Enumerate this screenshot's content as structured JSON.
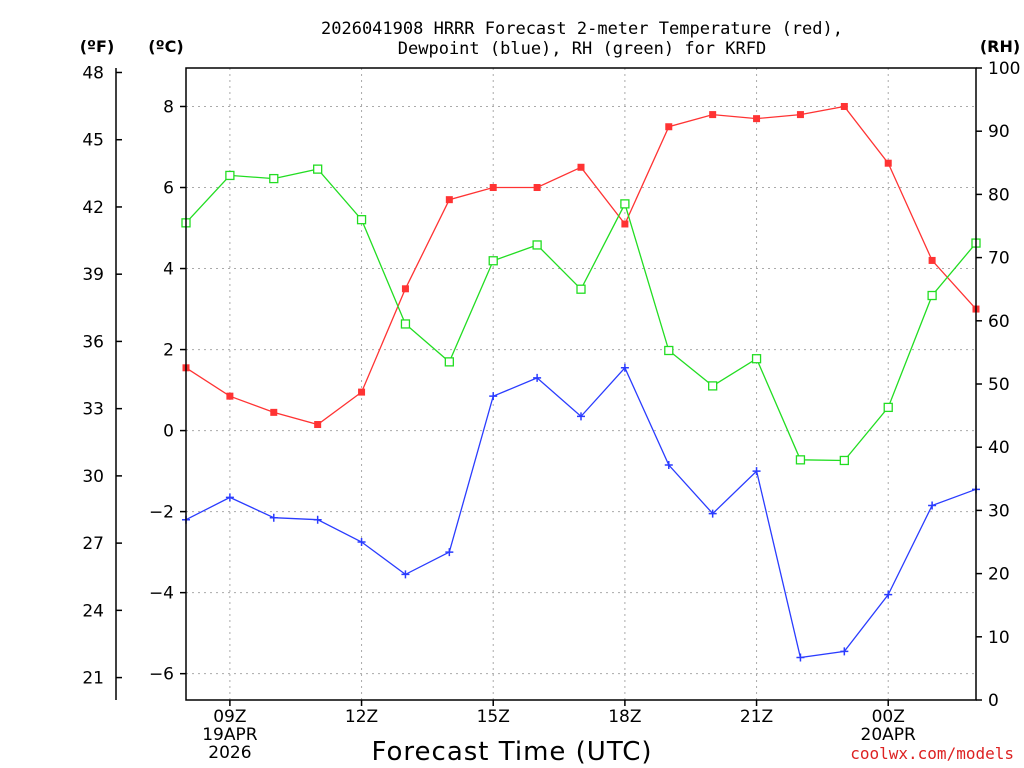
{
  "chart_data": {
    "type": "line",
    "title_lines": [
      "2026041908 HRRR Forecast 2-meter Temperature (red),",
      "Dewpoint (blue), RH (green) for KRFD"
    ],
    "units": {
      "fahrenheit": "(ºF)",
      "celsius": "(ºC)",
      "rh": "(RH)"
    },
    "xlabel": "Forecast Time (UTC)",
    "credit": "coolwx.com/models",
    "x_hours": [
      0,
      1,
      2,
      3,
      4,
      5,
      6,
      7,
      8,
      9,
      10,
      11,
      12,
      13,
      14,
      15,
      16,
      17,
      18
    ],
    "xlim": [
      0,
      18
    ],
    "x_ticks": [
      {
        "hour": 1,
        "lines": [
          "09Z",
          "19APR",
          "2026"
        ]
      },
      {
        "hour": 4,
        "lines": [
          "12Z"
        ]
      },
      {
        "hour": 7,
        "lines": [
          "15Z"
        ]
      },
      {
        "hour": 10,
        "lines": [
          "18Z"
        ]
      },
      {
        "hour": 13,
        "lines": [
          "21Z"
        ]
      },
      {
        "hour": 16,
        "lines": [
          "00Z",
          "20APR"
        ]
      }
    ],
    "celsius_axis": {
      "ylim": [
        -6.65,
        8.95
      ],
      "ticks": [
        -6,
        -4,
        -2,
        0,
        2,
        4,
        6,
        8
      ]
    },
    "fahrenheit_axis": {
      "ylim": [
        20.0,
        48.2
      ],
      "ticks": [
        21,
        24,
        27,
        30,
        33,
        36,
        39,
        42,
        45,
        48
      ]
    },
    "rh_axis": {
      "ylim": [
        0,
        100
      ],
      "ticks": [
        0,
        10,
        20,
        30,
        40,
        50,
        60,
        70,
        80,
        90,
        100
      ]
    },
    "series": [
      {
        "name": "Temperature",
        "axis": "celsius",
        "color": "#ff3333",
        "marker": "filled-square",
        "values": [
          1.55,
          0.85,
          0.45,
          0.15,
          0.95,
          3.5,
          5.7,
          6.0,
          6.0,
          6.5,
          5.1,
          7.5,
          7.8,
          7.7,
          7.8,
          8.0,
          6.6,
          4.2,
          3.0
        ]
      },
      {
        "name": "Dewpoint",
        "axis": "celsius",
        "color": "#2a3cff",
        "marker": "plus",
        "values": [
          -2.2,
          -1.65,
          -2.15,
          -2.2,
          -2.75,
          -3.55,
          -3.0,
          0.85,
          1.3,
          0.35,
          1.55,
          -0.85,
          -2.05,
          -1.0,
          -5.6,
          -5.45,
          -4.05,
          -1.85,
          -1.45
        ]
      },
      {
        "name": "RH",
        "axis": "rh",
        "color": "#22dd22",
        "marker": "open-square",
        "values": [
          75.5,
          83,
          82.5,
          84,
          76,
          59.5,
          53.5,
          69.5,
          72,
          65,
          78.5,
          55.3,
          49.7,
          54,
          38,
          37.9,
          46.3,
          64,
          72.3
        ]
      }
    ]
  }
}
